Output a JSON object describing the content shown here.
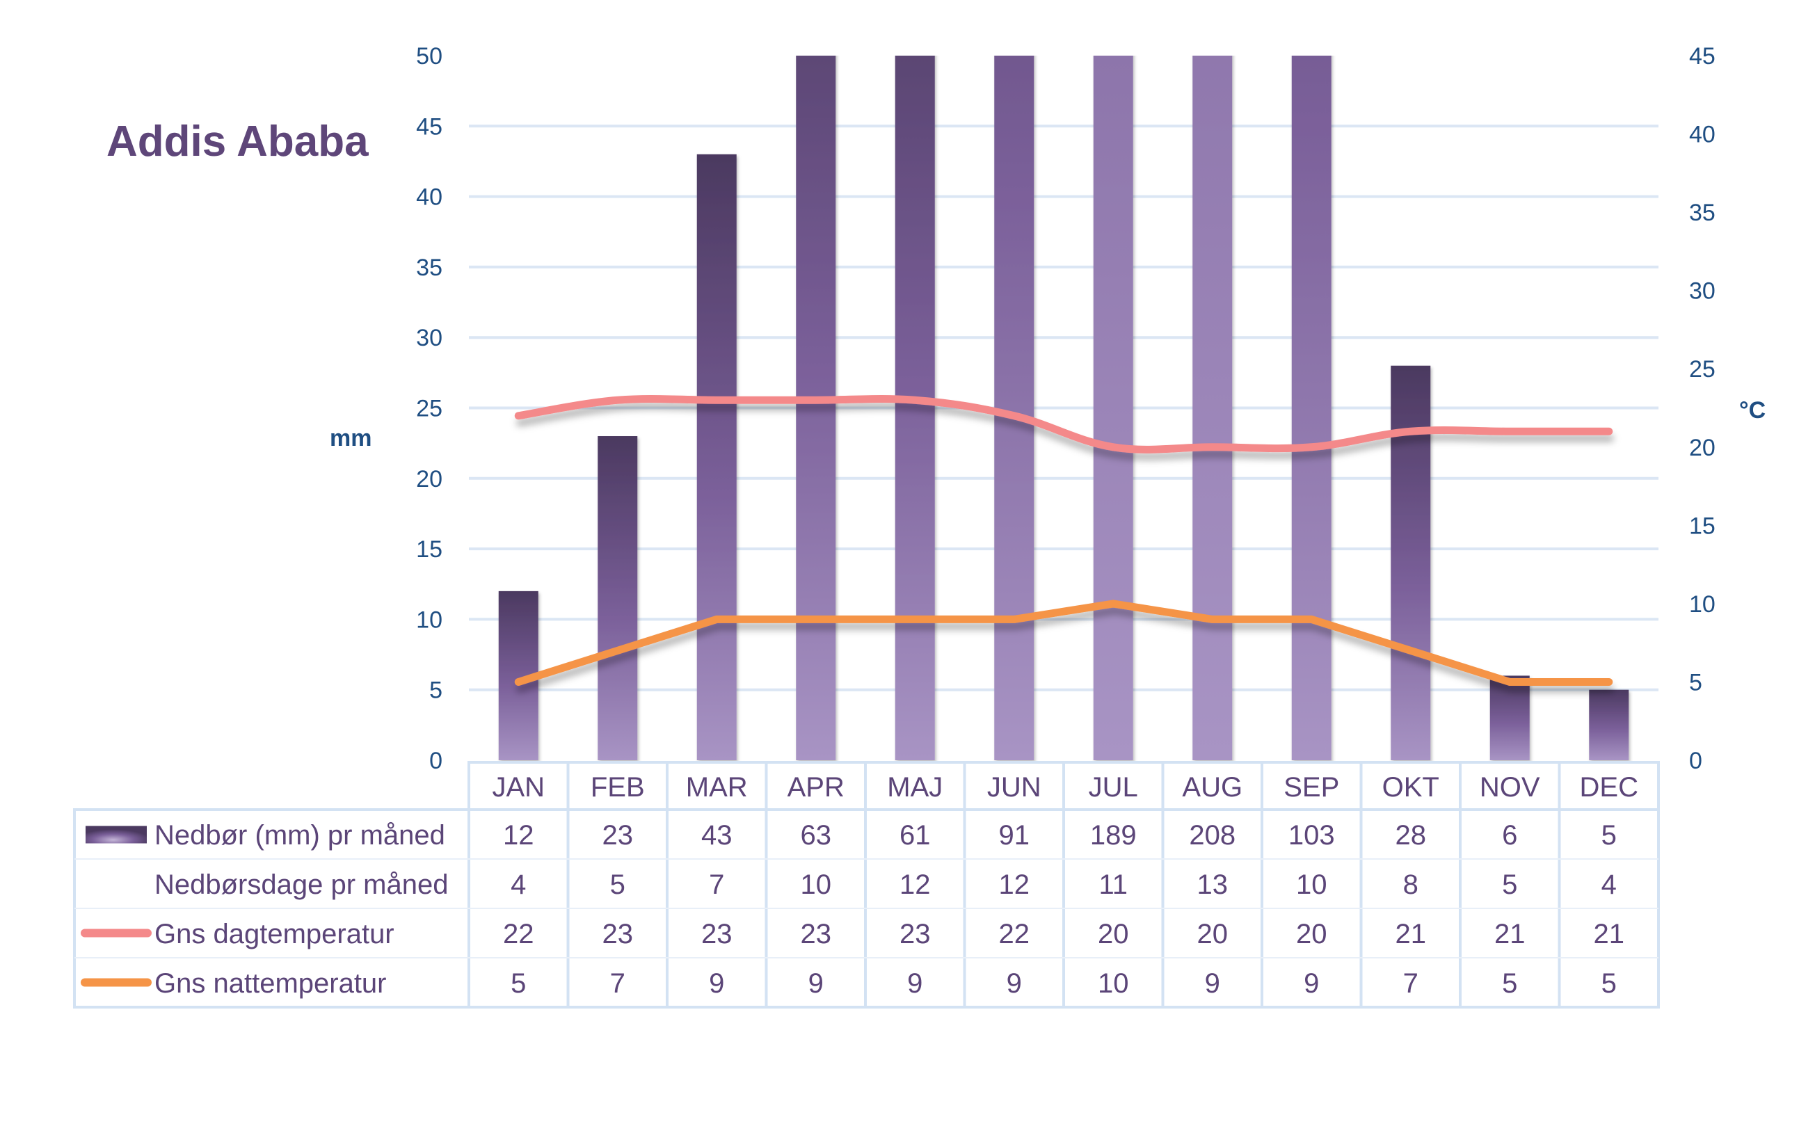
{
  "chart_data": {
    "type": "bar",
    "title": "Addis Ababa",
    "categories": [
      "JAN",
      "FEB",
      "MAR",
      "APR",
      "MAJ",
      "JUN",
      "JUL",
      "AUG",
      "SEP",
      "OKT",
      "NOV",
      "DEC"
    ],
    "left_axis": {
      "label": "mm",
      "ylim": [
        0,
        50
      ],
      "ticks": [
        0,
        5,
        10,
        15,
        20,
        25,
        30,
        35,
        40,
        45,
        50
      ]
    },
    "right_axis": {
      "label": "°C",
      "ylim": [
        0,
        45
      ],
      "ticks": [
        0,
        5,
        10,
        15,
        20,
        25,
        30,
        35,
        40,
        45
      ]
    },
    "grid": true,
    "legend_placement": "bottom-table",
    "series": [
      {
        "name": "Nedbør (mm) pr måned",
        "type": "bar",
        "axis": "left",
        "values": [
          12,
          23,
          43,
          63,
          61,
          91,
          189,
          208,
          103,
          28,
          6,
          5
        ],
        "color_top": "#4b3960",
        "color_bottom": "#a894c4"
      },
      {
        "name": "Nedbørsdage pr måned",
        "type": "table-only",
        "values": [
          4,
          5,
          7,
          10,
          12,
          12,
          11,
          13,
          10,
          8,
          5,
          4
        ]
      },
      {
        "name": "Gns dagtemperatur",
        "type": "line",
        "axis": "right",
        "smooth": true,
        "values": [
          22,
          23,
          23,
          23,
          23,
          22,
          20,
          20,
          20,
          21,
          21,
          21
        ],
        "color": "#f4898a"
      },
      {
        "name": "Gns nattemperatur",
        "type": "line",
        "axis": "right",
        "smooth": false,
        "values": [
          5,
          7,
          9,
          9,
          9,
          9,
          10,
          9,
          9,
          7,
          5,
          5
        ],
        "color": "#f59447"
      }
    ]
  }
}
